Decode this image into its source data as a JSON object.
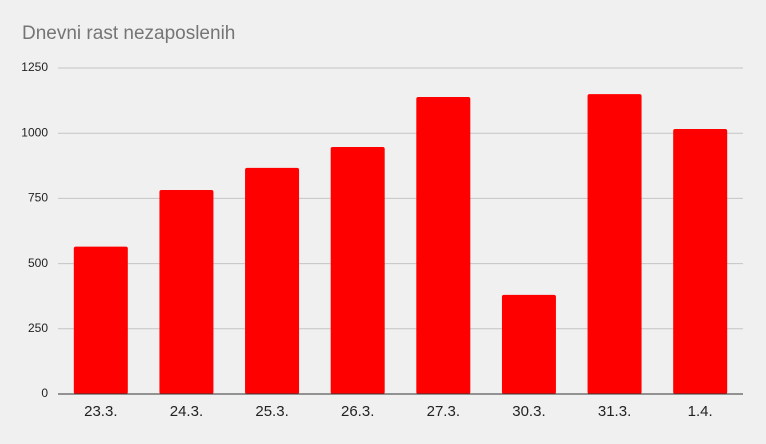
{
  "chart_data": {
    "type": "bar",
    "title": "Dnevni rast nezaposlenih",
    "categories": [
      "23.3.",
      "24.3.",
      "25.3.",
      "26.3.",
      "27.3.",
      "30.3.",
      "31.3.",
      "1.4."
    ],
    "values": [
      565,
      782,
      867,
      947,
      1139,
      380,
      1150,
      1016
    ],
    "color": "#ff0000",
    "ylim": [
      0,
      1250
    ],
    "yticks": [
      0,
      250,
      500,
      750,
      1000,
      1250
    ],
    "grid": true
  }
}
